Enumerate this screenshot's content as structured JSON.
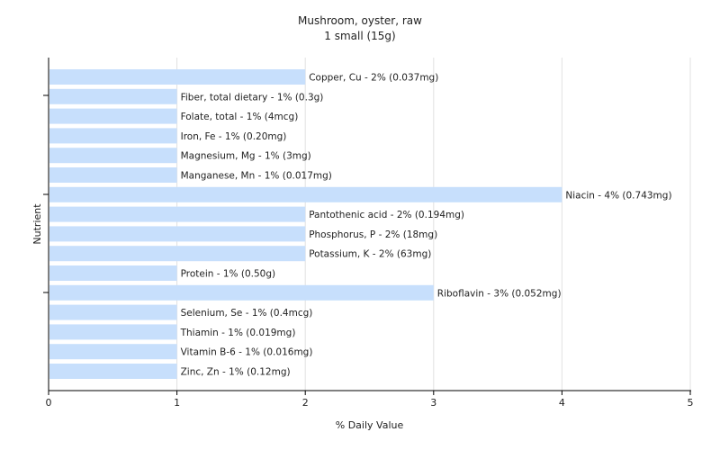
{
  "chart_data": {
    "type": "bar",
    "orientation": "horizontal",
    "title": "Mushroom, oyster, raw",
    "subtitle": "1 small (15g)",
    "xlabel": "% Daily Value",
    "ylabel": "Nutrient",
    "xlim": [
      0,
      5
    ],
    "xticks": [
      "0",
      "1",
      "2",
      "3",
      "4",
      "5"
    ],
    "grid": true,
    "bar_color": "#c7dffc",
    "categories": [
      "Copper, Cu",
      "Fiber, total dietary",
      "Folate, total",
      "Iron, Fe",
      "Magnesium, Mg",
      "Manganese, Mn",
      "Niacin",
      "Pantothenic acid",
      "Phosphorus, P",
      "Potassium, K",
      "Protein",
      "Riboflavin",
      "Selenium, Se",
      "Thiamin",
      "Vitamin B-6",
      "Zinc, Zn"
    ],
    "values": [
      2,
      1,
      1,
      1,
      1,
      1,
      4,
      2,
      2,
      2,
      1,
      3,
      1,
      1,
      1,
      1
    ],
    "labels": [
      "Copper, Cu - 2% (0.037mg)",
      "Fiber, total dietary - 1% (0.3g)",
      "Folate, total - 1% (4mcg)",
      "Iron, Fe - 1% (0.20mg)",
      "Magnesium, Mg - 1% (3mg)",
      "Manganese, Mn - 1% (0.017mg)",
      "Niacin - 4% (0.743mg)",
      "Pantothenic acid - 2% (0.194mg)",
      "Phosphorus, P - 2% (18mg)",
      "Potassium, K - 2% (63mg)",
      "Protein - 1% (0.50g)",
      "Riboflavin - 3% (0.052mg)",
      "Selenium, Se - 1% (0.4mcg)",
      "Thiamin - 1% (0.019mg)",
      "Vitamin B-6 - 1% (0.016mg)",
      "Zinc, Zn - 1% (0.12mg)"
    ]
  }
}
